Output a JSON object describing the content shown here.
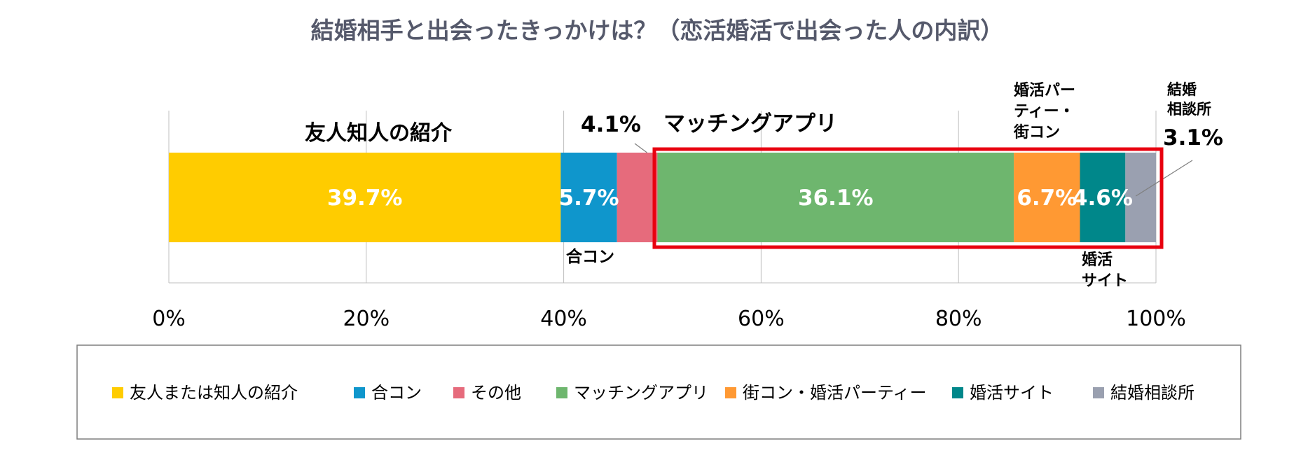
{
  "chart_data": {
    "type": "bar",
    "orientation": "horizontal",
    "stacked": true,
    "title": "結婚相手と出会ったきっかけは？（恋活婚活で出会った人の内訳）",
    "x_axis": {
      "ticks": [
        "0%",
        "20%",
        "40%",
        "60%",
        "80%",
        "100%"
      ],
      "range": [
        0,
        100
      ],
      "unit": "%"
    },
    "grid": true,
    "legend_position": "bottom",
    "series": [
      {
        "name": "友人または知人の紹介",
        "value": 39.7,
        "value_label": "39.7%",
        "color": "#FFCC00"
      },
      {
        "name": "合コン",
        "value": 5.7,
        "value_label": "5.7%",
        "color": "#0F96CC"
      },
      {
        "name": "その他",
        "value": 4.1,
        "value_label": "4.1%",
        "color": "#E66B7C"
      },
      {
        "name": "マッチングアプリ",
        "value": 36.1,
        "value_label": "36.1%",
        "color": "#6EB66E"
      },
      {
        "name": "街コン・婚活パーティー",
        "value": 6.7,
        "value_label": "6.7%",
        "color": "#FF9933"
      },
      {
        "name": "婚活サイト",
        "value": 4.6,
        "value_label": "4.6%",
        "color": "#00878A"
      },
      {
        "name": "結婚相談所",
        "value": 3.1,
        "value_label": "3.1%",
        "color": "#9AA0B0"
      }
    ],
    "annotations": {
      "friends": "友人知人の紹介",
      "goukon": "合コン",
      "other_value": "4.1%",
      "matching_app": "マッチングアプリ",
      "party_lines": [
        "婚活パー",
        "ティー・",
        "街コン"
      ],
      "site_lines": [
        "婚活",
        "サイト"
      ],
      "agency_lines": [
        "結婚",
        "相談所"
      ],
      "agency_value": "3.1%"
    },
    "highlight_color": "#E8000F"
  }
}
